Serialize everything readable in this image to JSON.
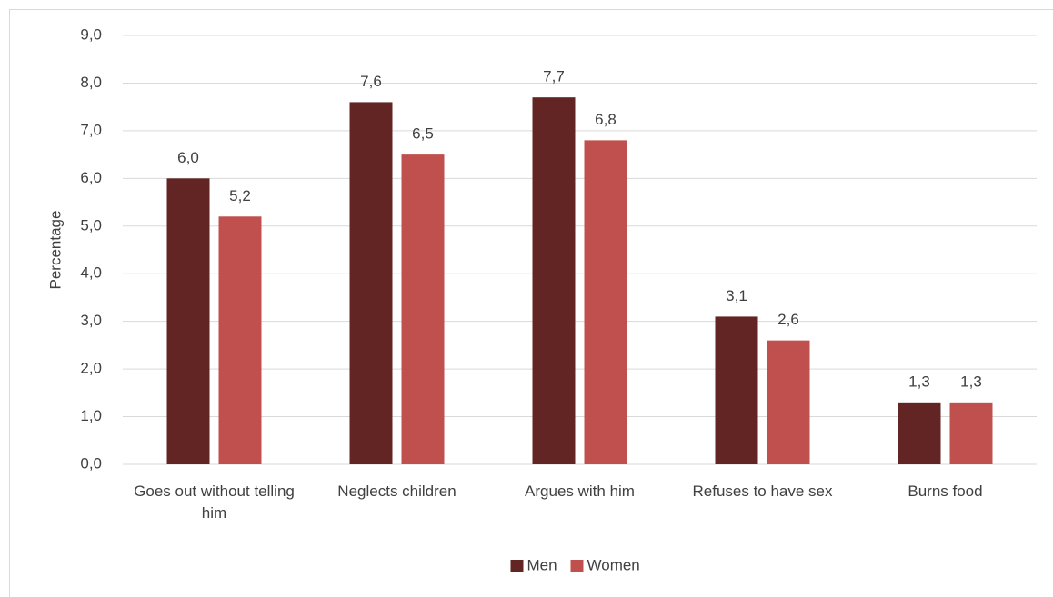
{
  "chart_data": {
    "type": "bar",
    "y_label": "Percentage",
    "categories": [
      "Goes out without telling him",
      "Neglects children",
      "Argues with him",
      "Refuses to have sex",
      "Burns food"
    ],
    "series": [
      {
        "name": "Men",
        "color": "#632523",
        "values": [
          6.0,
          7.6,
          7.7,
          3.1,
          1.3
        ],
        "value_labels": [
          "6,0",
          "7,6",
          "7,7",
          "3,1",
          "1,3"
        ]
      },
      {
        "name": "Women",
        "color": "#c0504d",
        "values": [
          5.2,
          6.5,
          6.8,
          2.6,
          1.3
        ],
        "value_labels": [
          "5,2",
          "6,5",
          "6,8",
          "2,6",
          "1,3"
        ]
      }
    ],
    "ylim": [
      0,
      9
    ],
    "yticks": [
      {
        "value": 0,
        "label": "0,0"
      },
      {
        "value": 1,
        "label": "1,0"
      },
      {
        "value": 2,
        "label": "2,0"
      },
      {
        "value": 3,
        "label": "3,0"
      },
      {
        "value": 4,
        "label": "4,0"
      },
      {
        "value": 5,
        "label": "5,0"
      },
      {
        "value": 6,
        "label": "6,0"
      },
      {
        "value": 7,
        "label": "7,0"
      },
      {
        "value": 8,
        "label": "8,0"
      },
      {
        "value": 9,
        "label": "9,0"
      }
    ],
    "grid": true,
    "legend": "bottom"
  }
}
